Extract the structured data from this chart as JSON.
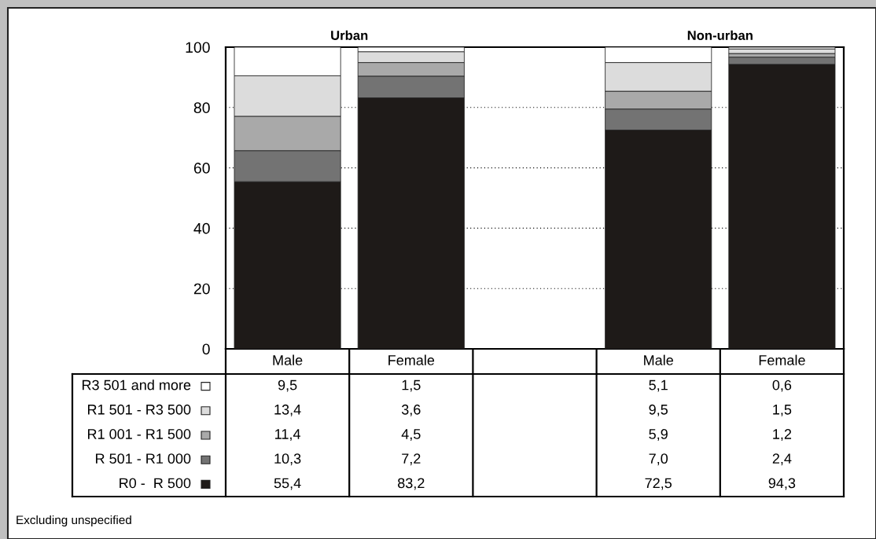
{
  "chart_data": {
    "type": "bar",
    "stacked": true,
    "categories": [
      "Male",
      "Female",
      null,
      "Male",
      "Female"
    ],
    "series": [
      {
        "name": "R0 -  R 500",
        "color": "#1e1a18",
        "values": [
          55.4,
          83.2,
          null,
          72.5,
          94.3
        ],
        "value_labels": [
          "55,4",
          "83,2",
          null,
          "72,5",
          "94,3"
        ]
      },
      {
        "name": "R 501 - R1 000",
        "color": "#737373",
        "values": [
          10.3,
          7.2,
          null,
          7.0,
          2.4
        ],
        "value_labels": [
          "10,3",
          "7,2",
          null,
          "7,0",
          "2,4"
        ]
      },
      {
        "name": "R1 001 - R1 500",
        "color": "#a9a9a9",
        "values": [
          11.4,
          4.5,
          null,
          5.9,
          1.2
        ],
        "value_labels": [
          "11,4",
          "4,5",
          null,
          "5,9",
          "1,2"
        ]
      },
      {
        "name": "R1 501 - R3 500",
        "color": "#dcdcdc",
        "values": [
          13.4,
          3.6,
          null,
          9.5,
          1.5
        ],
        "value_labels": [
          "13,4",
          "3,6",
          null,
          "9,5",
          "1,5"
        ]
      },
      {
        "name": "R3 501 and more",
        "color": "#ffffff",
        "values": [
          9.5,
          1.5,
          null,
          5.1,
          0.6
        ],
        "value_labels": [
          "9,5",
          "1,5",
          null,
          "5,1",
          "0,6"
        ]
      }
    ],
    "legend": "bottom",
    "ylim": [
      0,
      100
    ],
    "yticks": [
      0,
      20,
      40,
      60,
      80,
      100
    ],
    "grid": "y",
    "annotations": [
      "Urban",
      "Non-urban",
      "Excluding unspecified"
    ]
  }
}
